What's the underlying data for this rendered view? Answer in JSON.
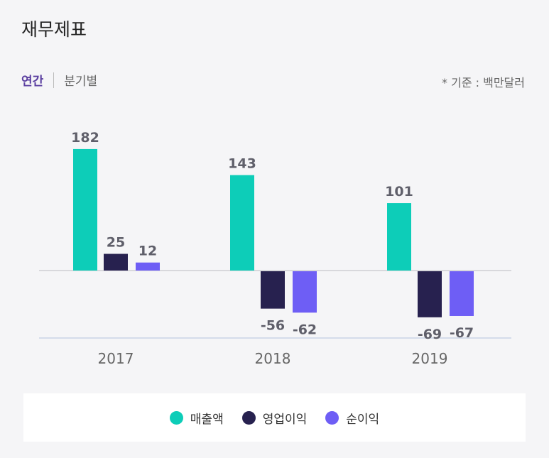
{
  "header": {
    "title": "재무제표",
    "tab_active": "연간",
    "tab_inactive": "분기별",
    "unit_note": "* 기준 : 백만달러"
  },
  "colors": {
    "revenue": "#0dcdb8",
    "operating": "#27214f",
    "net": "#6e5ef5"
  },
  "chart_data": {
    "type": "bar",
    "title": "재무제표",
    "categories": [
      "2017",
      "2018",
      "2019"
    ],
    "series": [
      {
        "name": "매출액",
        "values": [
          182,
          143,
          101
        ]
      },
      {
        "name": "영업이익",
        "values": [
          25,
          -56,
          -69
        ]
      },
      {
        "name": "순이익",
        "values": [
          12,
          -62,
          -67
        ]
      }
    ],
    "ylim": [
      -100,
      200
    ],
    "legend": "bottom",
    "grid": false
  }
}
